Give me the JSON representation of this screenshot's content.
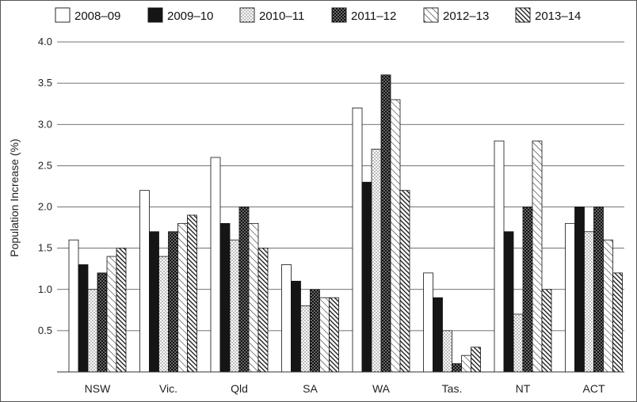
{
  "chart_data": {
    "type": "bar",
    "title": "",
    "xlabel": "",
    "ylabel": "Population Increase (%)",
    "ylim": [
      0,
      4.0
    ],
    "yticks": [
      "0.5",
      "1.0",
      "1.5",
      "2.0",
      "2.5",
      "3.0",
      "3.5",
      "4.0"
    ],
    "grid": true,
    "legend_position": "top",
    "categories": [
      "NSW",
      "Vic.",
      "Qld",
      "SA",
      "WA",
      "Tas.",
      "NT",
      "ACT"
    ],
    "series": [
      {
        "name": "2008–09",
        "pattern": "white",
        "values": [
          1.6,
          2.2,
          2.6,
          1.3,
          3.2,
          1.2,
          2.8,
          1.8
        ]
      },
      {
        "name": "2009–10",
        "pattern": "black",
        "values": [
          1.3,
          1.7,
          1.8,
          1.1,
          2.3,
          0.9,
          1.7,
          2.0
        ]
      },
      {
        "name": "2010–11",
        "pattern": "light-dots",
        "values": [
          1.0,
          1.4,
          1.6,
          0.8,
          2.7,
          0.5,
          0.7,
          1.7
        ]
      },
      {
        "name": "2011–12",
        "pattern": "dark-dots",
        "values": [
          1.2,
          1.7,
          2.0,
          1.0,
          3.6,
          0.1,
          2.0,
          2.0
        ]
      },
      {
        "name": "2012–13",
        "pattern": "light-hatch",
        "values": [
          1.4,
          1.8,
          1.8,
          0.9,
          3.3,
          0.2,
          2.8,
          1.6
        ]
      },
      {
        "name": "2013–14",
        "pattern": "dark-hatch",
        "values": [
          1.5,
          1.9,
          1.5,
          0.9,
          2.2,
          0.3,
          1.0,
          1.2
        ]
      }
    ]
  }
}
